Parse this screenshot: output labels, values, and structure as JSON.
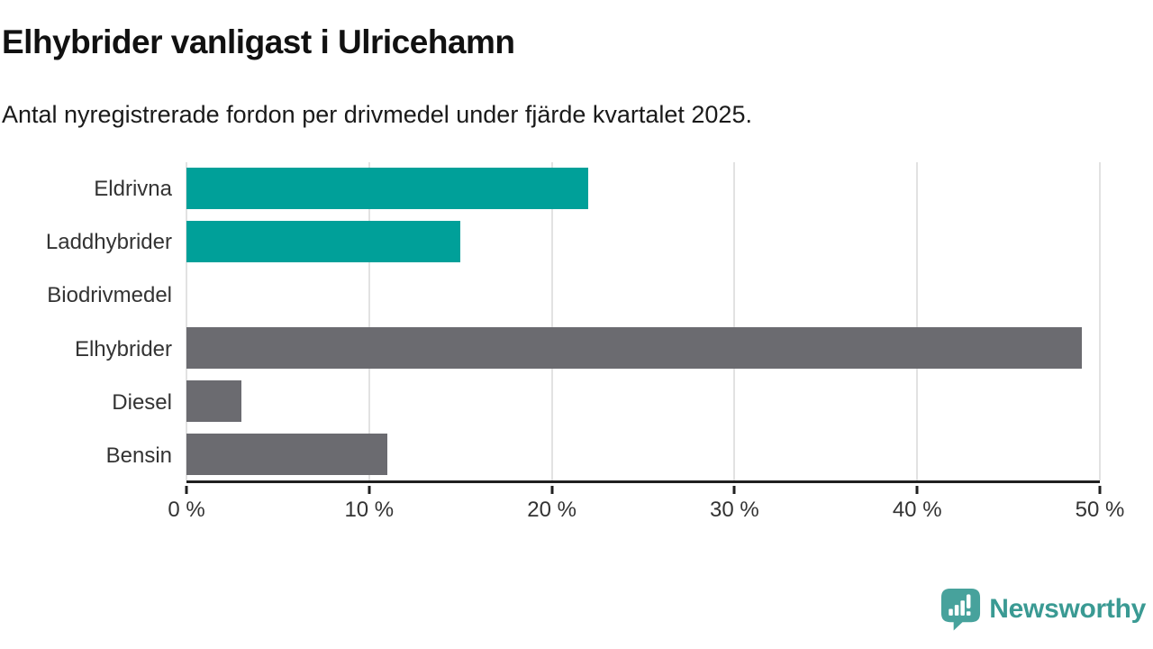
{
  "header": {
    "title": "Elhybrider vanligast i Ulricehamn",
    "subtitle": "Antal nyregistrerade fordon per drivmedel under fjärde kvartalet 2025."
  },
  "chart_data": {
    "type": "bar",
    "orientation": "horizontal",
    "title": "Elhybrider vanligast i Ulricehamn",
    "subtitle": "Antal nyregistrerade fordon per drivmedel under fjärde kvartalet 2025.",
    "categories": [
      "Eldrivna",
      "Laddhybrider",
      "Biodrivmedel",
      "Elhybrider",
      "Diesel",
      "Bensin"
    ],
    "values": [
      22,
      15,
      0,
      49,
      3,
      11
    ],
    "unit": "%",
    "xlim": [
      0,
      50
    ],
    "xticks": [
      0,
      10,
      20,
      30,
      40,
      50
    ],
    "xtick_labels": [
      "0 %",
      "10 %",
      "20 %",
      "30 %",
      "40 %",
      "50 %"
    ],
    "bar_colors": [
      "#00a099",
      "#00a099",
      "#00a099",
      "#6b6b70",
      "#6b6b70",
      "#6b6b70"
    ],
    "highlight_color": "#00a099",
    "default_color": "#6b6b70",
    "gridline_color": "#e2e2e2",
    "axis_color": "#202020",
    "grid": "vertical",
    "legend": "none"
  },
  "footer": {
    "brand": "Newsworthy",
    "brand_color": "#3a9a93",
    "icon": "newsworthy-chart-bubble-icon",
    "icon_color": "#47a29c"
  }
}
